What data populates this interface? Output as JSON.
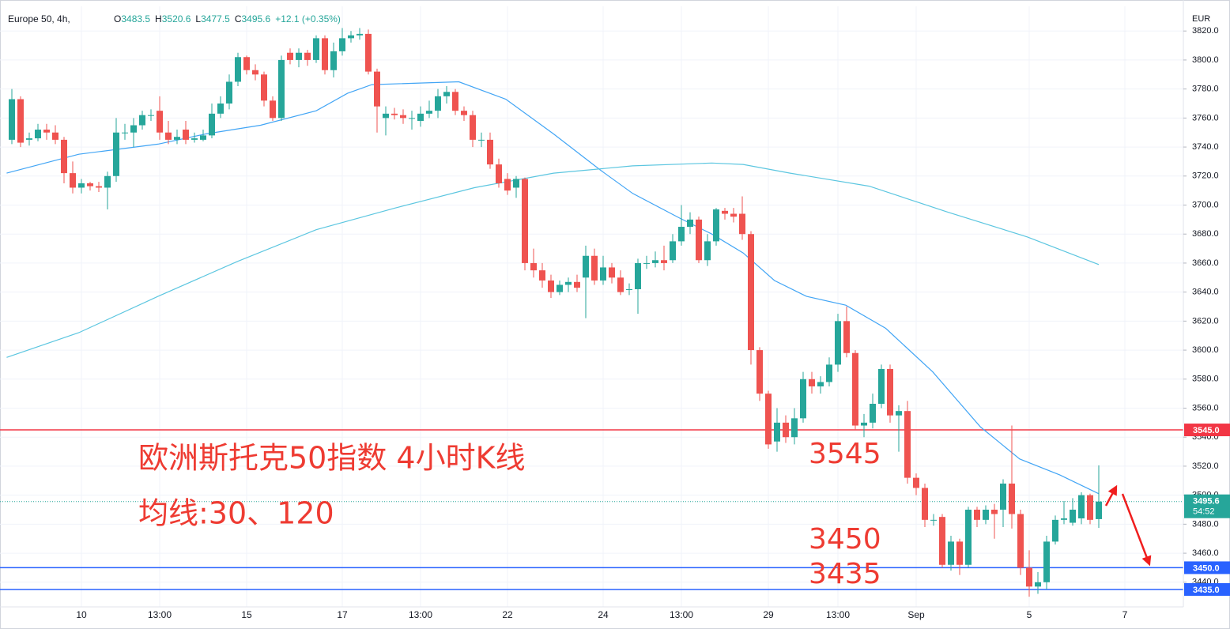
{
  "chart_data": {
    "type": "candlestick",
    "symbol": "Europe 50, 4h,",
    "ohlc_legend": [
      {
        "key": "O",
        "text": "3483.5"
      },
      {
        "key": "H",
        "text": "3520.6"
      },
      {
        "key": "L",
        "text": "3477.5"
      },
      {
        "key": "C",
        "text": "3495.6"
      }
    ],
    "change": "+12.1 (+0.35%)",
    "currency": "EUR",
    "up_color": "#26a69a",
    "down_color": "#ef5350",
    "grid": true,
    "categories": [
      null,
      null,
      null,
      null,
      null,
      null,
      null,
      null,
      "10",
      null,
      null,
      null,
      null,
      null,
      null,
      null,
      null,
      "13:00",
      null,
      null,
      null,
      null,
      null,
      null,
      null,
      null,
      null,
      "15",
      null,
      null,
      null,
      null,
      null,
      null,
      null,
      null,
      null,
      null,
      "17",
      null,
      null,
      null,
      null,
      null,
      null,
      null,
      null,
      "13:00",
      null,
      null,
      null,
      null,
      null,
      null,
      null,
      null,
      null,
      "22",
      null,
      null,
      null,
      null,
      null,
      null,
      null,
      null,
      null,
      null,
      "24",
      null,
      null,
      null,
      null,
      null,
      null,
      null,
      null,
      "13:00",
      null,
      null,
      null,
      null,
      null,
      null,
      null,
      null,
      null,
      "29",
      null,
      null,
      null,
      null,
      null,
      null,
      null,
      "13:00",
      null,
      null,
      null,
      null,
      null,
      null,
      null,
      null,
      "Sep",
      null,
      null,
      null,
      null,
      null,
      null,
      null,
      null,
      null,
      null,
      null,
      null,
      "5",
      null,
      null,
      null,
      null,
      null,
      null,
      null,
      null,
      null,
      null,
      "7"
    ],
    "open": [
      3745,
      3773,
      3745,
      3746,
      3752,
      3750,
      3745,
      3722,
      3712,
      3715,
      3713,
      3712,
      3720,
      3750,
      3750,
      3755,
      3762,
      3765,
      3750,
      3745,
      3752,
      3745,
      3745,
      3748,
      3763,
      3770,
      3785,
      3802,
      3793,
      3790,
      3772,
      3760,
      3805,
      3800,
      3805,
      3800,
      3815,
      3793,
      3806,
      3815,
      3817,
      3818,
      3792,
      3760,
      3763,
      3762,
      3760,
      3758,
      3763,
      3765,
      3775,
      3778,
      3765,
      3762,
      3745,
      3745,
      3728,
      3718,
      3712,
      3718,
      3660,
      3655,
      3648,
      3640,
      3645,
      3647,
      3650,
      3665,
      3648,
      3657,
      3650,
      3642,
      3642,
      3660,
      3660,
      3662,
      3662,
      3675,
      3685,
      3690,
      3662,
      3675,
      3696,
      3694,
      3694,
      3680,
      3600,
      3570,
      3537,
      3550,
      3540,
      3553,
      3580,
      3575,
      3578,
      3590,
      3620,
      3598,
      3548,
      3550,
      3563,
      3587,
      3555,
      3558,
      3512,
      3505,
      3483,
      3485,
      3452,
      3468,
      3452,
      3490,
      3483,
      3490,
      3490,
      3508,
      3487,
      3450,
      3437,
      3440,
      3468,
      3483,
      3481,
      3484,
      3500,
      3483.5,
      null,
      null,
      null
    ],
    "high": [
      3780,
      3775,
      3750,
      3756,
      3756,
      3755,
      3747,
      3730,
      3718,
      3716,
      3716,
      3723,
      3760,
      3756,
      3760,
      3765,
      3766,
      3775,
      3758,
      3752,
      3758,
      3750,
      3752,
      3770,
      3775,
      3790,
      3805,
      3803,
      3797,
      3792,
      3775,
      3803,
      3808,
      3808,
      3807,
      3817,
      3817,
      3812,
      3822,
      3820,
      3822,
      3821,
      3794,
      3768,
      3767,
      3766,
      3765,
      3768,
      3772,
      3780,
      3782,
      3780,
      3768,
      3765,
      3750,
      3750,
      3732,
      3722,
      3720,
      3719,
      3670,
      3660,
      3652,
      3648,
      3650,
      3652,
      3672,
      3670,
      3665,
      3660,
      3655,
      3646,
      3663,
      3665,
      3668,
      3672,
      3680,
      3700,
      3695,
      3692,
      3680,
      3698,
      3698,
      3698,
      3706,
      3682,
      3602,
      3572,
      3560,
      3555,
      3560,
      3585,
      3585,
      3582,
      3595,
      3625,
      3630,
      3600,
      3556,
      3570,
      3590,
      3590,
      3562,
      3565,
      3515,
      3508,
      3487,
      3487,
      3472,
      3470,
      3492,
      3492,
      3493,
      3494,
      3511,
      3548,
      3490,
      3462,
      3447,
      3472,
      3486,
      3496,
      3498,
      3502,
      3501,
      3520.6,
      null,
      null,
      null
    ],
    "low": [
      3742,
      3740,
      3741,
      3744,
      3745,
      3742,
      3715,
      3708,
      3708,
      3710,
      3709,
      3697,
      3716,
      3745,
      3740,
      3752,
      3758,
      3745,
      3742,
      3742,
      3742,
      3743,
      3744,
      3746,
      3760,
      3766,
      3782,
      3790,
      3786,
      3768,
      3758,
      3758,
      3797,
      3795,
      3796,
      3798,
      3790,
      3788,
      3803,
      3812,
      3814,
      3790,
      3750,
      3748,
      3759,
      3756,
      3752,
      3754,
      3760,
      3760,
      3770,
      3762,
      3758,
      3740,
      3740,
      3725,
      3712,
      3707,
      3705,
      3655,
      3650,
      3643,
      3636,
      3638,
      3640,
      3640,
      3622,
      3645,
      3645,
      3646,
      3638,
      3638,
      3625,
      3656,
      3657,
      3655,
      3660,
      3672,
      3680,
      3660,
      3658,
      3672,
      3690,
      3688,
      3676,
      3590,
      3565,
      3532,
      3530,
      3536,
      3535,
      3550,
      3570,
      3570,
      3575,
      3585,
      3595,
      3545,
      3540,
      3546,
      3560,
      3550,
      3530,
      3508,
      3500,
      3478,
      3479,
      3450,
      3448,
      3445,
      3450,
      3478,
      3480,
      3470,
      3478,
      3477,
      3445,
      3430,
      3432,
      3435,
      3466,
      3480,
      3479,
      3480,
      3480,
      3477.5,
      null,
      null,
      null
    ],
    "close": [
      3773,
      3743,
      3746,
      3752,
      3750,
      3745,
      3722,
      3712,
      3715,
      3713,
      3712,
      3720,
      3750,
      3750,
      3755,
      3762,
      3762,
      3750,
      3745,
      3747,
      3745,
      3746,
      3748,
      3763,
      3770,
      3785,
      3802,
      3793,
      3790,
      3772,
      3760,
      3800,
      3800,
      3805,
      3800,
      3815,
      3793,
      3806,
      3815,
      3817,
      3818,
      3792,
      3768,
      3763,
      3762,
      3760,
      3760,
      3763,
      3765,
      3775,
      3778,
      3765,
      3762,
      3745,
      3745,
      3728,
      3715,
      3710,
      3718,
      3660,
      3655,
      3648,
      3640,
      3645,
      3647,
      3643,
      3665,
      3648,
      3657,
      3650,
      3640,
      3642,
      3660,
      3660,
      3662,
      3660,
      3675,
      3685,
      3690,
      3662,
      3675,
      3697,
      3694,
      3692,
      3680,
      3600,
      3570,
      3535,
      3550,
      3540,
      3553,
      3580,
      3575,
      3578,
      3590,
      3620,
      3598,
      3548,
      3550,
      3563,
      3587,
      3555,
      3558,
      3512,
      3505,
      3483,
      3483,
      3452,
      3468,
      3452,
      3490,
      3483,
      3490,
      3487,
      3508,
      3487,
      3450,
      3437,
      3440,
      3468,
      3483,
      3484,
      3490,
      3500,
      3483,
      3495.6,
      null,
      null,
      null
    ],
    "lines": [
      {
        "color": "#42a5f5",
        "x": [
          -0.6,
          7.7,
          16.8,
          22.3,
          28.6,
          35,
          38.6,
          41.4,
          51.4,
          56.8,
          62.3,
          67.7,
          71.4,
          76.8,
          80.5,
          84.1,
          87.7,
          91.4,
          95.9,
          100.5,
          105.9,
          111.4,
          115.9,
          120.5,
          125
        ],
        "values": [
          3722,
          3735,
          3742,
          3749,
          3755,
          3765,
          3777,
          3783,
          3785,
          3773,
          3749,
          3724,
          3708,
          3691,
          3680,
          3667,
          3648,
          3637,
          3631,
          3615,
          3585,
          3547,
          3525,
          3514,
          3501
        ]
      },
      {
        "color": "#5cc6e0",
        "x": [
          -0.6,
          7.7,
          16.8,
          25.9,
          35,
          44.1,
          53.2,
          62.3,
          71.4,
          80.5,
          84.1,
          89.5,
          98.6,
          107.7,
          116.8,
          125
        ],
        "values": [
          3595,
          3612,
          3637,
          3661,
          3683,
          3698,
          3712,
          3722,
          3727,
          3729,
          3728,
          3722,
          3713,
          3695,
          3678,
          3659
        ]
      }
    ],
    "ylim": [
      3423,
      3837
    ],
    "yticks": [
      {
        "value": 3440,
        "label": "3440.0"
      },
      {
        "value": 3460,
        "label": "3460.0"
      },
      {
        "value": 3480,
        "label": "3480.0"
      },
      {
        "value": 3500,
        "label": "3500.0"
      },
      {
        "value": 3520,
        "label": "3520.0"
      },
      {
        "value": 3540,
        "label": "3540.0"
      },
      {
        "value": 3560,
        "label": "3560.0"
      },
      {
        "value": 3580,
        "label": "3580.0"
      },
      {
        "value": 3600,
        "label": "3600.0"
      },
      {
        "value": 3620,
        "label": "3620.0"
      },
      {
        "value": 3640,
        "label": "3640.0"
      },
      {
        "value": 3660,
        "label": "3660.0"
      },
      {
        "value": 3680,
        "label": "3680.0"
      },
      {
        "value": 3700,
        "label": "3700.0"
      },
      {
        "value": 3720,
        "label": "3720.0"
      },
      {
        "value": 3740,
        "label": "3740.0"
      },
      {
        "value": 3760,
        "label": "3760.0"
      },
      {
        "value": 3780,
        "label": "3780.0"
      },
      {
        "value": 3800,
        "label": "3800.0"
      },
      {
        "value": 3820,
        "label": "3820.0"
      }
    ],
    "levels": [
      {
        "value": 3545,
        "label": "3545.0",
        "color": "#f23645"
      },
      {
        "value": 3450,
        "label": "3450.0",
        "color": "#2962ff"
      },
      {
        "value": 3435,
        "label": "3435.0",
        "color": "#2962ff"
      }
    ],
    "last_price": {
      "value": 3495.6,
      "label": "3495.6",
      "countdown": "54:52",
      "color": "#26a69a"
    },
    "annotations": [
      "欧洲斯托克50指数 4小时K线",
      "均线:30、120",
      "3545",
      "3450",
      "3435"
    ]
  }
}
